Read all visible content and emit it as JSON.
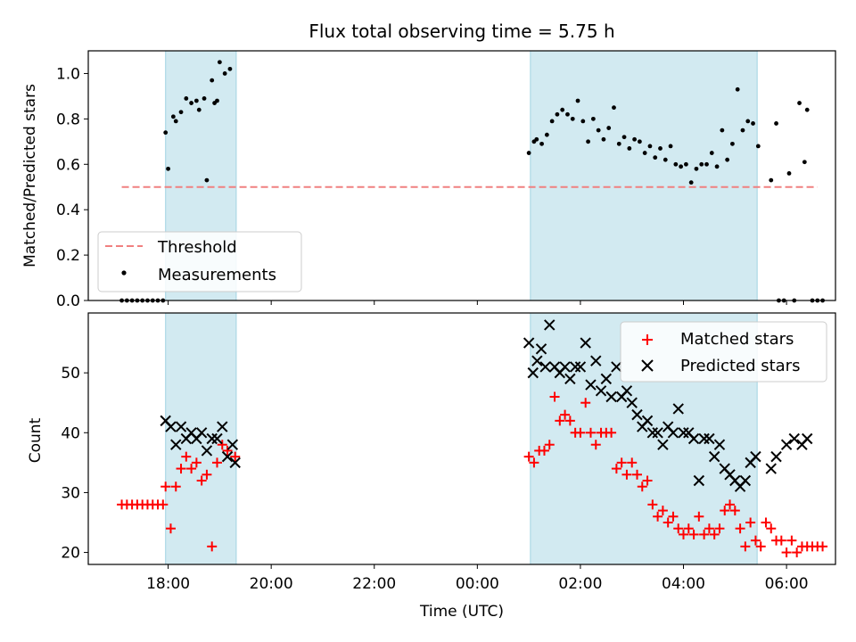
{
  "figure": {
    "title": "Flux total observing time = 5.75 h",
    "xlabel": "Time (UTC)",
    "x_ticks": [
      "18:00",
      "20:00",
      "22:00",
      "00:00",
      "02:00",
      "04:00",
      "06:00"
    ],
    "x_tick_hours": [
      18,
      20,
      22,
      24,
      26,
      28,
      30
    ],
    "x_range_hours": [
      16.45,
      30.95
    ]
  },
  "colors": {
    "shade": "#add8e6",
    "threshold": "#f08080",
    "measurement": "#000000",
    "matched": "#ff0000",
    "predicted": "#000000"
  },
  "chart_data": [
    {
      "type": "scatter",
      "ylabel": "Matched/Predicted stars",
      "ylim": [
        0,
        1.1
      ],
      "yticks": [
        0.0,
        0.2,
        0.4,
        0.6,
        0.8,
        1.0
      ],
      "y_tick_labels": [
        "0.0",
        "0.2",
        "0.4",
        "0.6",
        "0.8",
        "1.0"
      ],
      "grid": false,
      "legend": "lower-left",
      "shaded_spans_hours": [
        [
          17.95,
          19.32
        ],
        [
          25.03,
          29.43
        ]
      ],
      "threshold": {
        "name": "Threshold",
        "y": 0.5,
        "x_range_hours": [
          17.1,
          30.6
        ]
      },
      "series": [
        {
          "name": "Measurements",
          "x_hours": [
            17.1,
            17.2,
            17.3,
            17.4,
            17.5,
            17.6,
            17.7,
            17.8,
            17.9,
            17.95,
            18.0,
            18.1,
            18.15,
            18.25,
            18.35,
            18.45,
            18.55,
            18.6,
            18.7,
            18.75,
            18.85,
            18.9,
            18.95,
            19.0,
            19.1,
            19.2,
            19.3,
            25.0,
            25.1,
            25.15,
            25.25,
            25.35,
            25.45,
            25.55,
            25.65,
            25.75,
            25.85,
            25.95,
            26.05,
            26.15,
            26.25,
            26.35,
            26.45,
            26.55,
            26.65,
            26.75,
            26.85,
            26.95,
            27.05,
            27.15,
            27.25,
            27.35,
            27.45,
            27.55,
            27.65,
            27.75,
            27.85,
            27.95,
            28.05,
            28.15,
            28.25,
            28.35,
            28.45,
            28.55,
            28.65,
            28.75,
            28.85,
            28.95,
            29.05,
            29.15,
            29.25,
            29.35,
            29.45,
            29.7,
            29.8,
            29.85,
            29.95,
            30.05,
            30.15,
            30.25,
            30.35,
            30.4,
            30.5,
            30.6,
            30.7
          ],
          "values": [
            0,
            0,
            0,
            0,
            0,
            0,
            0,
            0,
            0,
            0.74,
            0.58,
            0.81,
            0.79,
            0.83,
            0.89,
            0.87,
            0.88,
            0.84,
            0.89,
            0.53,
            0.97,
            0.87,
            0.88,
            1.05,
            1.0,
            1.02,
            null,
            0.65,
            0.7,
            0.71,
            0.69,
            0.73,
            0.79,
            0.82,
            0.84,
            0.82,
            0.8,
            0.88,
            0.79,
            0.7,
            0.8,
            0.75,
            0.71,
            0.76,
            0.85,
            0.69,
            0.72,
            0.67,
            0.71,
            0.7,
            0.65,
            0.68,
            0.63,
            0.67,
            0.62,
            0.68,
            0.6,
            0.59,
            0.6,
            0.52,
            0.58,
            0.6,
            0.6,
            0.65,
            0.59,
            0.75,
            0.62,
            0.69,
            0.93,
            0.75,
            0.79,
            0.78,
            0.68,
            0.53,
            0.78,
            0.0,
            0.0,
            0.56,
            0.0,
            0.87,
            0.61,
            0.84,
            0.0,
            0.0,
            0.0
          ]
        }
      ]
    },
    {
      "type": "scatter",
      "ylabel": "Count",
      "ylim": [
        18,
        60
      ],
      "yticks": [
        20,
        30,
        40,
        50
      ],
      "y_tick_labels": [
        "20",
        "30",
        "40",
        "50"
      ],
      "grid": false,
      "legend": "top-right",
      "shaded_spans_hours": [
        [
          17.95,
          19.32
        ],
        [
          25.03,
          29.43
        ]
      ],
      "series": [
        {
          "name": "Matched stars",
          "marker": "+",
          "x_hours": [
            17.1,
            17.2,
            17.3,
            17.4,
            17.5,
            17.6,
            17.7,
            17.8,
            17.9,
            17.95,
            18.05,
            18.15,
            18.25,
            18.35,
            18.45,
            18.55,
            18.65,
            18.75,
            18.85,
            18.95,
            19.05,
            19.15,
            19.3,
            25.0,
            25.1,
            25.2,
            25.3,
            25.4,
            25.5,
            25.6,
            25.7,
            25.8,
            25.9,
            26.0,
            26.1,
            26.2,
            26.3,
            26.4,
            26.5,
            26.6,
            26.7,
            26.8,
            26.9,
            27.0,
            27.1,
            27.2,
            27.3,
            27.4,
            27.5,
            27.6,
            27.7,
            27.8,
            27.9,
            28.0,
            28.1,
            28.2,
            28.3,
            28.4,
            28.5,
            28.6,
            28.7,
            28.8,
            28.9,
            29.0,
            29.1,
            29.2,
            29.3,
            29.4,
            29.5,
            29.6,
            29.7,
            29.8,
            29.9,
            30.0,
            30.1,
            30.2,
            30.3,
            30.4,
            30.5,
            30.6,
            30.7
          ],
          "values": [
            28,
            28,
            28,
            28,
            28,
            28,
            28,
            28,
            28,
            31,
            24,
            31,
            34,
            36,
            34,
            35,
            32,
            33,
            21,
            35,
            38,
            37,
            36,
            36,
            35,
            37,
            37,
            38,
            46,
            42,
            43,
            42,
            40,
            40,
            45,
            40,
            38,
            40,
            40,
            40,
            34,
            35,
            33,
            35,
            33,
            31,
            32,
            28,
            26,
            27,
            25,
            26,
            24,
            23,
            24,
            23,
            26,
            23,
            24,
            23,
            24,
            27,
            28,
            27,
            24,
            21,
            25,
            22,
            21,
            25,
            24,
            22,
            22,
            20,
            22,
            20,
            21,
            21,
            21,
            21,
            21
          ]
        },
        {
          "name": "Predicted stars",
          "marker": "x",
          "x_hours": [
            17.95,
            18.05,
            18.15,
            18.25,
            18.35,
            18.45,
            18.55,
            18.65,
            18.75,
            18.85,
            18.95,
            19.05,
            19.15,
            19.25,
            19.3,
            25.0,
            25.08,
            25.16,
            25.24,
            25.32,
            25.4,
            25.5,
            25.6,
            25.7,
            25.8,
            25.9,
            26.0,
            26.1,
            26.2,
            26.3,
            26.4,
            26.5,
            26.6,
            26.7,
            26.8,
            26.9,
            27.0,
            27.1,
            27.2,
            27.3,
            27.4,
            27.5,
            27.6,
            27.7,
            27.8,
            27.9,
            28.0,
            28.1,
            28.2,
            28.3,
            28.4,
            28.5,
            28.6,
            28.7,
            28.8,
            28.9,
            29.0,
            29.1,
            29.2,
            29.3,
            29.4,
            29.7,
            29.8,
            30.0,
            30.15,
            30.3,
            30.4
          ],
          "values": [
            42,
            41,
            38,
            41,
            39,
            40,
            39,
            40,
            37,
            39,
            39,
            41,
            36,
            38,
            35,
            55,
            50,
            52,
            54,
            51,
            58,
            51,
            50,
            51,
            49,
            51,
            51,
            55,
            48,
            52,
            47,
            49,
            46,
            51,
            46,
            47,
            45,
            43,
            41,
            42,
            40,
            40,
            38,
            41,
            40,
            44,
            40,
            40,
            39,
            32,
            39,
            39,
            36,
            38,
            34,
            33,
            32,
            31,
            32,
            35,
            36,
            34,
            36,
            38,
            39,
            38,
            39
          ]
        }
      ]
    }
  ]
}
